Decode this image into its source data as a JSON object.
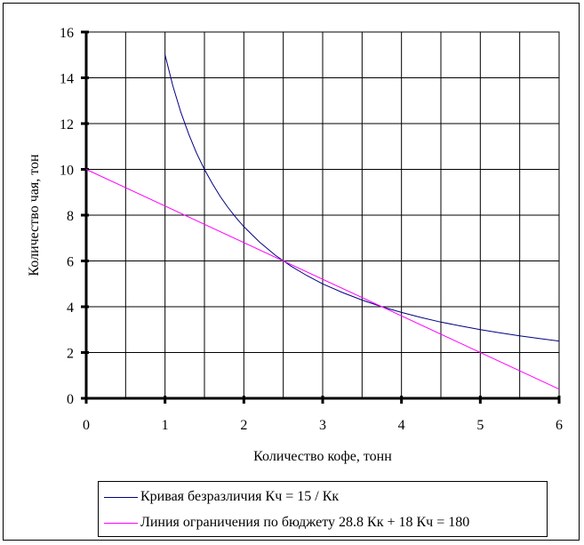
{
  "chart_data": {
    "type": "line",
    "xlabel": "Количество кофе, тонн",
    "ylabel": "Количество чая, тон",
    "xlim": [
      0,
      6
    ],
    "ylim": [
      0,
      16
    ],
    "x_ticks": [
      0,
      1,
      2,
      3,
      4,
      5,
      6
    ],
    "y_ticks": [
      0,
      2,
      4,
      6,
      8,
      10,
      12,
      14,
      16
    ],
    "x_grid_step": 0.5,
    "grid": true,
    "legend_position": "bottom",
    "series": [
      {
        "name": "Кривая безразличия Кч = 15 / Кк",
        "color": "#000080",
        "x": [
          1,
          1.1,
          1.2,
          1.3,
          1.4,
          1.5,
          1.6,
          1.7,
          1.8,
          1.9,
          2,
          2.2,
          2.4,
          2.6,
          2.8,
          3,
          3.25,
          3.5,
          3.75,
          4,
          4.25,
          4.5,
          4.75,
          5,
          5.25,
          5.5,
          5.75,
          6
        ],
        "y": [
          15,
          13.64,
          12.5,
          11.54,
          10.71,
          10,
          9.38,
          8.82,
          8.33,
          7.89,
          7.5,
          6.82,
          6.25,
          5.77,
          5.36,
          5,
          4.62,
          4.29,
          4,
          3.75,
          3.53,
          3.33,
          3.16,
          3,
          2.86,
          2.73,
          2.61,
          2.5
        ]
      },
      {
        "name": "Линия ограничения по бюджету 28.8 Кк + 18 Кч = 180",
        "color": "#ff00ff",
        "x": [
          0,
          6
        ],
        "y": [
          10,
          0.4
        ]
      }
    ]
  }
}
